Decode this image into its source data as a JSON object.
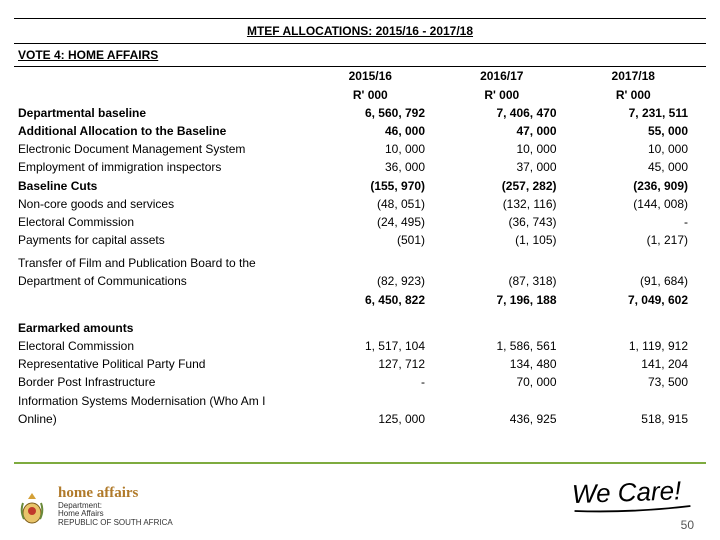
{
  "title": "MTEF ALLOCATIONS:  2015/16 - 2017/18",
  "subtitle": "VOTE 4: HOME AFFAIRS",
  "header": {
    "y1": "2015/16",
    "y2": "2016/17",
    "y3": "2017/18",
    "unit": "R' 000"
  },
  "rows": [
    {
      "label": "Departmental baseline",
      "bold": true,
      "v1": "6, 560, 792",
      "v2": "7, 406, 470",
      "v3": "7, 231, 511"
    },
    {
      "label": "Additional Allocation to the Baseline",
      "bold": true,
      "v1": "46, 000",
      "v2": "47, 000",
      "v3": "55, 000"
    },
    {
      "label": "Electronic Document Management System",
      "bold": false,
      "v1": "10, 000",
      "v2": "10, 000",
      "v3": "10, 000"
    },
    {
      "label": "Employment of immigration inspectors",
      "bold": false,
      "v1": "36, 000",
      "v2": "37, 000",
      "v3": "45, 000"
    },
    {
      "label": "Baseline Cuts",
      "bold": true,
      "v1": "(155, 970)",
      "v2": "(257, 282)",
      "v3": "(236, 909)"
    },
    {
      "label": "Non-core goods and services",
      "bold": false,
      "v1": "(48, 051)",
      "v2": "(132, 116)",
      "v3": "(144, 008)"
    },
    {
      "label": "Electoral Commission",
      "bold": false,
      "v1": "(24, 495)",
      "v2": "(36, 743)",
      "v3": "-"
    },
    {
      "label": "Payments for capital assets",
      "bold": false,
      "v1": "(501)",
      "v2": "(1, 105)",
      "v3": "(1, 217)"
    }
  ],
  "transfer": {
    "label1": "Transfer of Film and Publication Board to the",
    "label2": "Department of Communications",
    "v1": "(82, 923)",
    "v2": "(87, 318)",
    "v3": "(91, 684)"
  },
  "subtotal": {
    "v1": "6, 450, 822",
    "v2": "7, 196, 188",
    "v3": "7, 049, 602"
  },
  "earmarked_label": "Earmarked amounts",
  "earmarked": [
    {
      "label": "Electoral Commission",
      "v1": "1, 517, 104",
      "v2": "1, 586, 561",
      "v3": "1, 119, 912"
    },
    {
      "label": "Representative Political Party Fund",
      "v1": "127, 712",
      "v2": "134, 480",
      "v3": "141, 204"
    },
    {
      "label": "Border Post Infrastructure",
      "v1": "-",
      "v2": "70, 000",
      "v3": "73, 500"
    }
  ],
  "ism": {
    "label1": "Information Systems Modernisation (Who Am I",
    "label2": "Online)",
    "v1": "125, 000",
    "v2": "436, 925",
    "v3": "518, 915"
  },
  "footer": {
    "brand": "home affairs",
    "dept1": "Department:",
    "dept2": "Home Affairs",
    "dept3": "REPUBLIC OF SOUTH AFRICA",
    "wecare": "We Care!",
    "page": "50",
    "accent": "#7eab3f",
    "brand_color": "#b07a2a"
  }
}
